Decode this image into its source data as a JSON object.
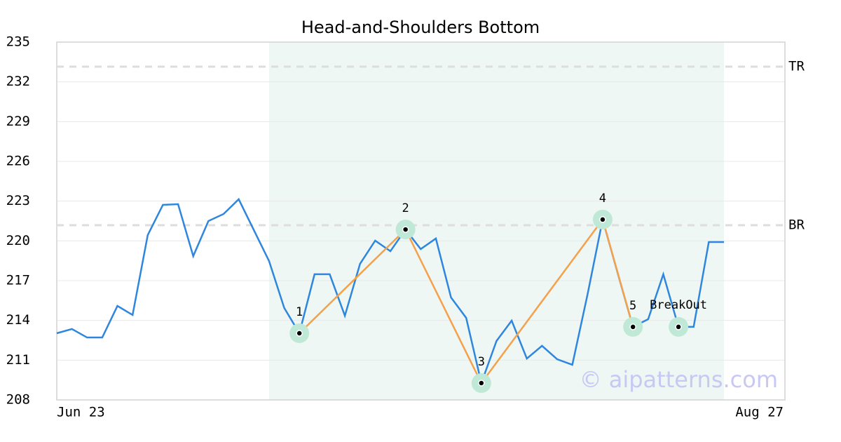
{
  "chart_data": {
    "type": "line",
    "title": "Head-and-Shoulders Bottom",
    "watermark": "© aipatterns.com",
    "categories": [
      "Jun 23",
      null,
      null,
      null,
      null,
      null,
      null,
      null,
      null,
      null,
      null,
      null,
      null,
      null,
      null,
      null,
      null,
      null,
      null,
      null,
      null,
      null,
      null,
      null,
      null,
      null,
      null,
      null,
      null,
      null,
      null,
      null,
      null,
      null,
      null,
      null,
      null,
      null,
      null,
      null,
      null,
      null,
      null,
      null,
      "Aug 27"
    ],
    "series": [
      {
        "color": "#2e86de",
        "values": [
          213.03,
          213.35,
          212.71,
          212.71,
          215.09,
          214.41,
          220.44,
          222.72,
          222.77,
          218.85,
          221.5,
          222.03,
          223.14,
          220.81,
          218.48,
          214.94,
          213.03,
          217.48,
          217.48,
          214.35,
          218.27,
          220.02,
          219.22,
          220.86,
          219.38,
          220.18,
          215.73,
          214.19,
          209.27,
          212.45,
          213.98,
          211.12,
          212.08,
          211.07,
          210.65,
          215.94,
          221.61,
          217.53,
          213.51,
          214.09,
          217.48,
          213.51,
          213.51,
          219.91,
          219.91
        ]
      }
    ],
    "pattern": {
      "color": "#f5a04a",
      "points": [
        {
          "label": "1",
          "at": 16,
          "value": 213.03
        },
        {
          "label": "2",
          "at": 23,
          "value": 220.86
        },
        {
          "label": "3",
          "at": 28,
          "value": 209.27
        },
        {
          "label": "4",
          "at": 36,
          "value": 221.61
        },
        {
          "label": "5",
          "at": 38,
          "value": 213.51
        }
      ]
    },
    "breakout": {
      "label": "BreakOut",
      "at": 41,
      "value": 213.51
    },
    "hlines": [
      {
        "label": "TR",
        "value": 233.15
      },
      {
        "label": "BR",
        "value": 221.18
      }
    ],
    "highlight": [
      14,
      44
    ],
    "ylim": [
      208,
      235
    ],
    "yticks": [
      208,
      211,
      214,
      217,
      220,
      223,
      226,
      229,
      232,
      235
    ],
    "grid": true
  }
}
